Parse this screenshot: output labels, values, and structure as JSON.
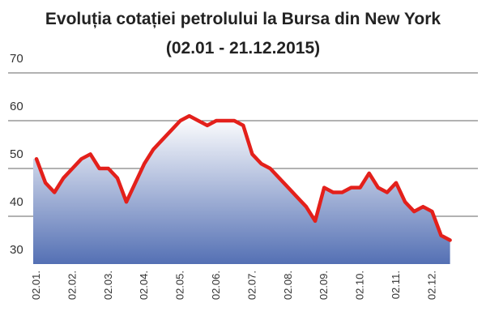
{
  "chart_data": {
    "type": "line",
    "title": "Evoluția cotației petrolului la Bursa din New York",
    "subtitle": "(02.01 - 21.12.2015)",
    "categories": [
      "02.01.",
      null,
      null,
      null,
      "02.02.",
      null,
      null,
      null,
      "02.03.",
      null,
      null,
      null,
      "02.04.",
      null,
      null,
      null,
      "02.05.",
      null,
      null,
      null,
      "02.06.",
      null,
      null,
      null,
      "02.07.",
      null,
      null,
      null,
      "02.08.",
      null,
      null,
      null,
      "02.09.",
      null,
      null,
      null,
      "02.10.",
      null,
      null,
      null,
      "02.11.",
      null,
      null,
      null,
      "02.12.",
      null,
      null
    ],
    "values": [
      52,
      47,
      45,
      48,
      50,
      52,
      53,
      50,
      50,
      48,
      43,
      47,
      51,
      54,
      56,
      58,
      60,
      61,
      60,
      59,
      60,
      60,
      60,
      59,
      53,
      51,
      50,
      48,
      46,
      44,
      42,
      39,
      46,
      45,
      45,
      46,
      46,
      49,
      46,
      45,
      47,
      43,
      41,
      42,
      41,
      36,
      35
    ],
    "color": "#e3201b",
    "area_color": "#5470b4",
    "ylim": [
      30,
      70
    ],
    "yticks": [
      30,
      40,
      50,
      60,
      70
    ],
    "grid": true
  }
}
